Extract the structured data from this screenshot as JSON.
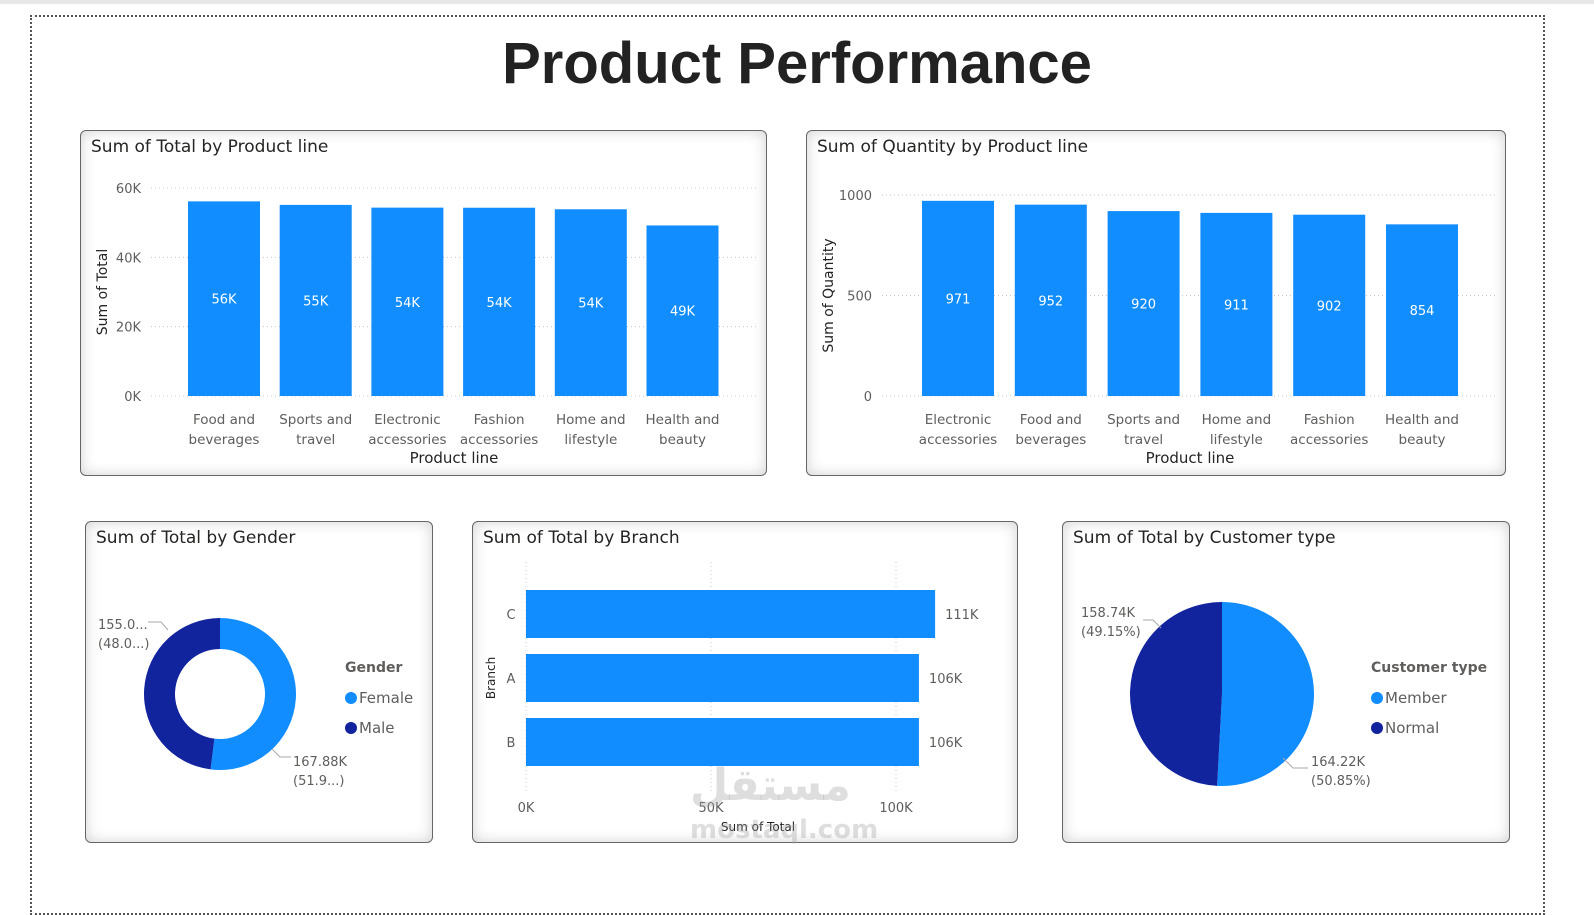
{
  "page_title": "Product Performance",
  "watermark": {
    "arabic": "مستقل",
    "latin": "mostaql.com"
  },
  "colors": {
    "primary": "#118DFF",
    "dark": "#12239E",
    "grid": "#c8c8c8"
  },
  "chart_data": [
    {
      "id": "total_by_product",
      "type": "bar",
      "title": "Sum of Total by Product line",
      "xlabel": "Product line",
      "ylabel": "Sum of Total",
      "categories": [
        [
          "Food and",
          "beverages"
        ],
        [
          "Sports and",
          "travel"
        ],
        [
          "Electronic",
          "accessories"
        ],
        [
          "Fashion",
          "accessories"
        ],
        [
          "Home and",
          "lifestyle"
        ],
        [
          "Health and",
          "beauty"
        ]
      ],
      "values": [
        56144,
        55123,
        54338,
        54306,
        53862,
        49194
      ],
      "data_labels": [
        "56K",
        "55K",
        "54K",
        "54K",
        "54K",
        "49K"
      ],
      "yticks": [
        0,
        20000,
        40000,
        60000
      ],
      "ytick_labels": [
        "0K",
        "20K",
        "40K",
        "60K"
      ],
      "ylim": [
        0,
        60000
      ]
    },
    {
      "id": "quantity_by_product",
      "type": "bar",
      "title": "Sum of Quantity by Product line",
      "xlabel": "Product line",
      "ylabel": "Sum of Quantity",
      "categories": [
        [
          "Electronic",
          "accessories"
        ],
        [
          "Food and",
          "beverages"
        ],
        [
          "Sports and",
          "travel"
        ],
        [
          "Home and",
          "lifestyle"
        ],
        [
          "Fashion",
          "accessories"
        ],
        [
          "Health and",
          "beauty"
        ]
      ],
      "values": [
        971,
        952,
        920,
        911,
        902,
        854
      ],
      "data_labels": [
        "971",
        "952",
        "920",
        "911",
        "902",
        "854"
      ],
      "yticks": [
        0,
        500,
        1000
      ],
      "ytick_labels": [
        "0",
        "500",
        "1000"
      ],
      "ylim": [
        0,
        1000
      ]
    },
    {
      "id": "total_by_gender",
      "type": "pie",
      "donut": true,
      "title": "Sum of Total by Gender",
      "legend_title": "Gender",
      "legend_position": "right",
      "slices": [
        {
          "name": "Female",
          "value": 167880,
          "label": "167.88K",
          "pct_label": "(51.9...)",
          "percent": 51.99
        },
        {
          "name": "Male",
          "value": 155080,
          "label": "155.0...",
          "pct_label": "(48.0...)",
          "percent": 48.01
        }
      ]
    },
    {
      "id": "total_by_branch",
      "type": "bar",
      "orientation": "horizontal",
      "title": "Sum of Total by Branch",
      "xlabel": "Sum of Total",
      "ylabel": "Branch",
      "categories": [
        "C",
        "A",
        "B"
      ],
      "values": [
        110568,
        106200,
        106198
      ],
      "data_labels": [
        "111K",
        "106K",
        "106K"
      ],
      "xticks": [
        0,
        50000,
        100000
      ],
      "xtick_labels": [
        "0K",
        "50K",
        "100K"
      ],
      "xlim": [
        0,
        100000
      ]
    },
    {
      "id": "total_by_customer_type",
      "type": "pie",
      "title": "Sum of Total by Customer type",
      "legend_title": "Customer type",
      "legend_position": "right",
      "slices": [
        {
          "name": "Member",
          "value": 164220,
          "label": "164.22K",
          "pct_label": "(50.85%)",
          "percent": 50.85
        },
        {
          "name": "Normal",
          "value": 158740,
          "label": "158.74K",
          "pct_label": "(49.15%)",
          "percent": 49.15
        }
      ]
    }
  ]
}
